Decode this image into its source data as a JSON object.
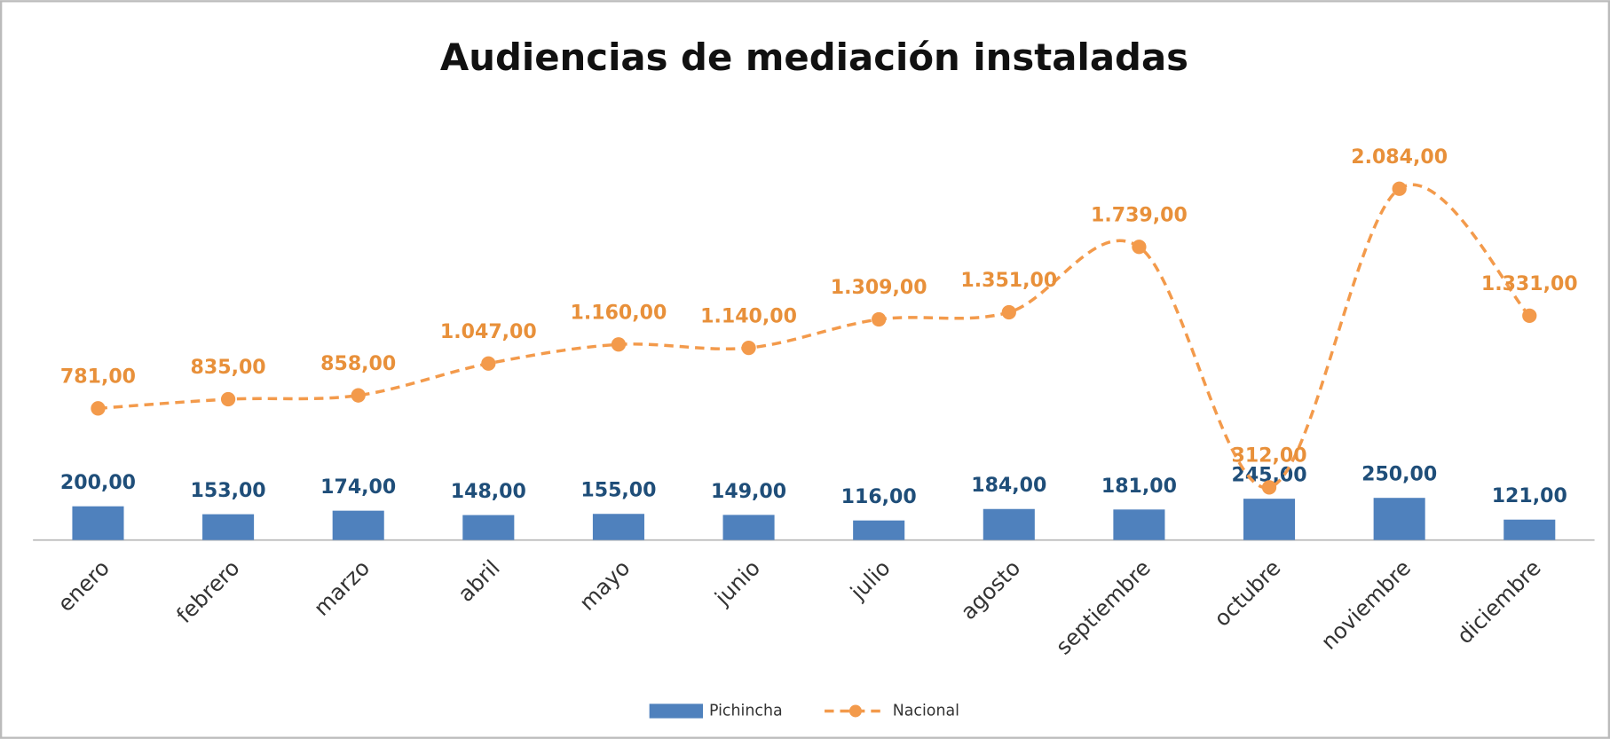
{
  "chart_data": {
    "type": "bar",
    "title": "Audiencias de mediación instaladas",
    "categories": [
      "enero",
      "febrero",
      "marzo",
      "abril",
      "mayo",
      "junio",
      "julio",
      "agosto",
      "septiembre",
      "octubre",
      "noviembre",
      "diciembre"
    ],
    "series": [
      {
        "name": "Pichincha",
        "type": "bar",
        "color": "#4f81bd",
        "values": [
          200,
          153,
          174,
          148,
          155,
          149,
          116,
          184,
          181,
          245,
          250,
          121
        ],
        "value_labels": [
          "200,00",
          "153,00",
          "174,00",
          "148,00",
          "155,00",
          "149,00",
          "116,00",
          "184,00",
          "181,00",
          "245,00",
          "250,00",
          "121,00"
        ]
      },
      {
        "name": "Nacional",
        "type": "line",
        "color": "#f39a4b",
        "dashed": true,
        "smooth": true,
        "values": [
          781,
          835,
          858,
          1047,
          1160,
          1140,
          1309,
          1351,
          1739,
          312,
          2084,
          1331
        ],
        "value_labels": [
          "781,00",
          "835,00",
          "858,00",
          "1.047,00",
          "1.160,00",
          "1.140,00",
          "1.309,00",
          "1.351,00",
          "1.739,00",
          "312,00",
          "2.084,00",
          "1.331,00"
        ]
      }
    ],
    "ylim": [
      0,
      2500
    ],
    "legend": "bottom"
  }
}
